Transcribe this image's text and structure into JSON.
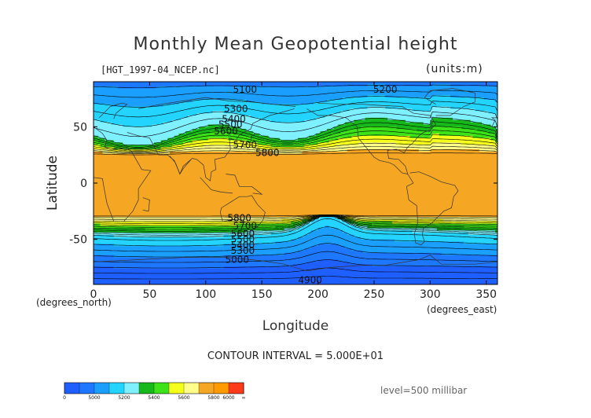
{
  "title": "Monthly Mean Geopotential height",
  "filename": "[HGT_1997-04_NCEP.nc]",
  "units": "(units:m)",
  "contour_interval": "CONTOUR INTERVAL = 5.000E+01",
  "level": "level=500 millibar",
  "colorbar": {
    "colors": [
      "#1f5fff",
      "#1e78ff",
      "#1a9fff",
      "#22d4ff",
      "#7ff0ff",
      "#16b81a",
      "#3de218",
      "#f6ff1c",
      "#ffff8a",
      "#f5a623",
      "#ff9a00",
      "#ff3a1a"
    ],
    "labels": [
      "0",
      "5000",
      "5200",
      "5400",
      "5600",
      "5800",
      "6000",
      "∞"
    ]
  },
  "chart_data": {
    "type": "contour",
    "title": "Monthly Mean Geopotential height",
    "xlabel": "Longitude",
    "ylabel": "Latitude",
    "x_unit": "(degrees_east)",
    "y_unit": "(degrees_north)",
    "xlim": [
      0,
      360
    ],
    "ylim": [
      -90,
      90
    ],
    "x_ticks": [
      0,
      50,
      100,
      150,
      200,
      250,
      300,
      350
    ],
    "y_ticks": [
      50,
      0,
      -50
    ],
    "bands": [
      {
        "name": "<5000",
        "color": "#1f5fff"
      },
      {
        "name": "5000-5100",
        "color": "#1e78ff"
      },
      {
        "name": "5100-5200",
        "color": "#1a9fff"
      },
      {
        "name": "5200-5300",
        "color": "#22d4ff"
      },
      {
        "name": "5300-5400",
        "color": "#7ff0ff"
      },
      {
        "name": "5400-5500",
        "color": "#16b81a"
      },
      {
        "name": "5500-5600",
        "color": "#3de218"
      },
      {
        "name": "5600-5700",
        "color": "#f6ff1c"
      },
      {
        "name": "5700-5800",
        "color": "#ffff8a"
      },
      {
        "name": ">5800",
        "color": "#f5a623"
      }
    ],
    "contour_labels": [
      {
        "text": "5100",
        "lon": 135,
        "lat": 83
      },
      {
        "text": "5200",
        "lon": 260,
        "lat": 83
      },
      {
        "text": "5300",
        "lon": 127,
        "lat": 66
      },
      {
        "text": "5400",
        "lon": 125,
        "lat": 57
      },
      {
        "text": "5500",
        "lon": 122,
        "lat": 52
      },
      {
        "text": "5600",
        "lon": 118,
        "lat": 46
      },
      {
        "text": "5700",
        "lon": 135,
        "lat": 34
      },
      {
        "text": "5800",
        "lon": 155,
        "lat": 27
      },
      {
        "text": "5800",
        "lon": 130,
        "lat": -31
      },
      {
        "text": "5700",
        "lon": 135,
        "lat": -38
      },
      {
        "text": "5600",
        "lon": 133,
        "lat": -45
      },
      {
        "text": "5500",
        "lon": 133,
        "lat": -50
      },
      {
        "text": "5400",
        "lon": 133,
        "lat": -55
      },
      {
        "text": "5300",
        "lon": 133,
        "lat": -60
      },
      {
        "text": "5000",
        "lon": 128,
        "lat": -68
      },
      {
        "text": "4900",
        "lon": 193,
        "lat": -86
      }
    ]
  }
}
